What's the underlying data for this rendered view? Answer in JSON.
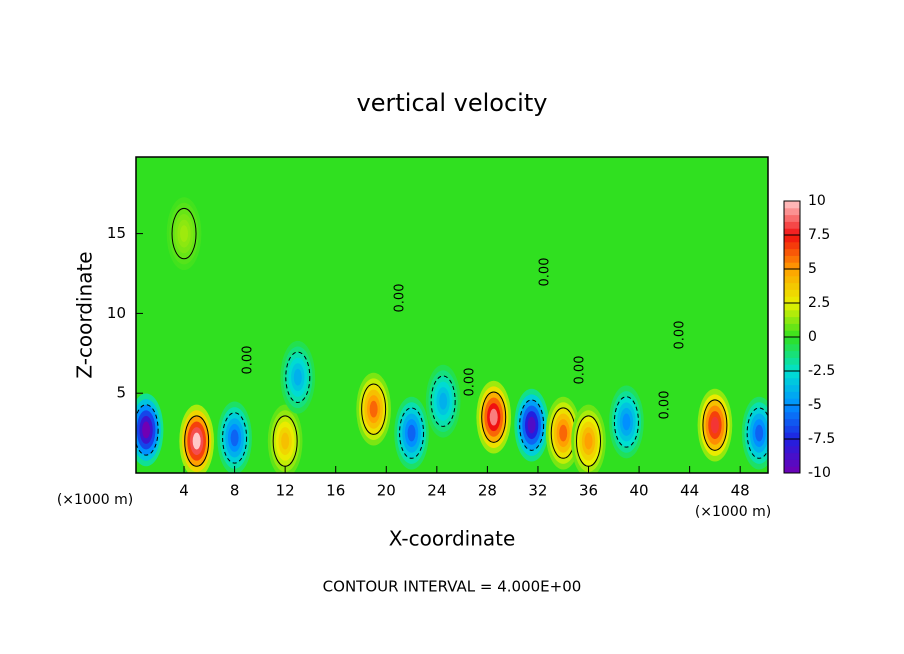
{
  "chart_data": {
    "type": "contour",
    "title": "vertical velocity",
    "x_label": "X-coordinate",
    "y_label": "Z-coordinate",
    "x_unit": "(×1000 m)",
    "contour_label": "0.00",
    "footer": "CONTOUR INTERVAL = 4.000E+00",
    "xlim": [
      0.2,
      50.2
    ],
    "ylim": [
      0,
      19.8
    ],
    "xticks": [
      4,
      8,
      12,
      16,
      20,
      24,
      28,
      32,
      36,
      40,
      44,
      48
    ],
    "yticks": [
      5,
      10,
      15
    ],
    "colorbar": {
      "ticks": [
        -10,
        -7.5,
        -5,
        -2.5,
        0,
        2.5,
        5,
        7.5,
        10
      ],
      "colors": [
        "#7000b4",
        "#2020e0",
        "#0090ff",
        "#00e0d0",
        "#30e020",
        "#e8f000",
        "#ffa000",
        "#f01010",
        "#ffc8c8"
      ]
    },
    "extrema": {
      "x": [
        1,
        5,
        8,
        12,
        13,
        19,
        22,
        24.5,
        28.5,
        31.5,
        34,
        36,
        39,
        46,
        49.5,
        4
      ],
      "z": [
        2.7,
        2,
        2.2,
        2,
        6,
        4,
        2.5,
        4.5,
        3.5,
        3,
        2.5,
        2,
        3.2,
        3,
        2.5,
        15
      ],
      "values": [
        -10,
        10,
        -6,
        4,
        -4,
        6,
        -6,
        -4,
        9,
        -9,
        6,
        5,
        -5,
        8,
        -6,
        1.5
      ]
    }
  }
}
